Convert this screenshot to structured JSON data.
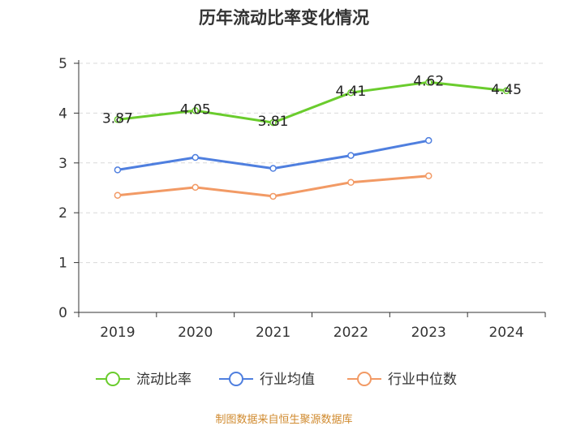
{
  "chart_data": {
    "type": "line",
    "title": "历年流动比率变化情况",
    "categories": [
      "2019",
      "2020",
      "2021",
      "2022",
      "2023",
      "2024"
    ],
    "ylim": [
      0,
      5
    ],
    "yticks": [
      "0",
      "1",
      "2",
      "3",
      "4",
      "5"
    ],
    "grid": true,
    "legend_position": "bottom",
    "series": [
      {
        "name": "流动比率",
        "color": "#6acc2d",
        "values": [
          3.87,
          4.05,
          3.81,
          4.41,
          4.62,
          4.45
        ],
        "labels": [
          "3.87",
          "4.05",
          "3.81",
          "4.41",
          "4.62",
          "4.45"
        ]
      },
      {
        "name": "行业均值",
        "color": "#4f7fdf",
        "values": [
          2.86,
          3.11,
          2.89,
          3.15,
          3.45,
          null
        ]
      },
      {
        "name": "行业中位数",
        "color": "#f29a65",
        "values": [
          2.35,
          2.51,
          2.33,
          2.61,
          2.74,
          null
        ]
      }
    ]
  },
  "source": "制图数据来自恒生聚源数据库"
}
